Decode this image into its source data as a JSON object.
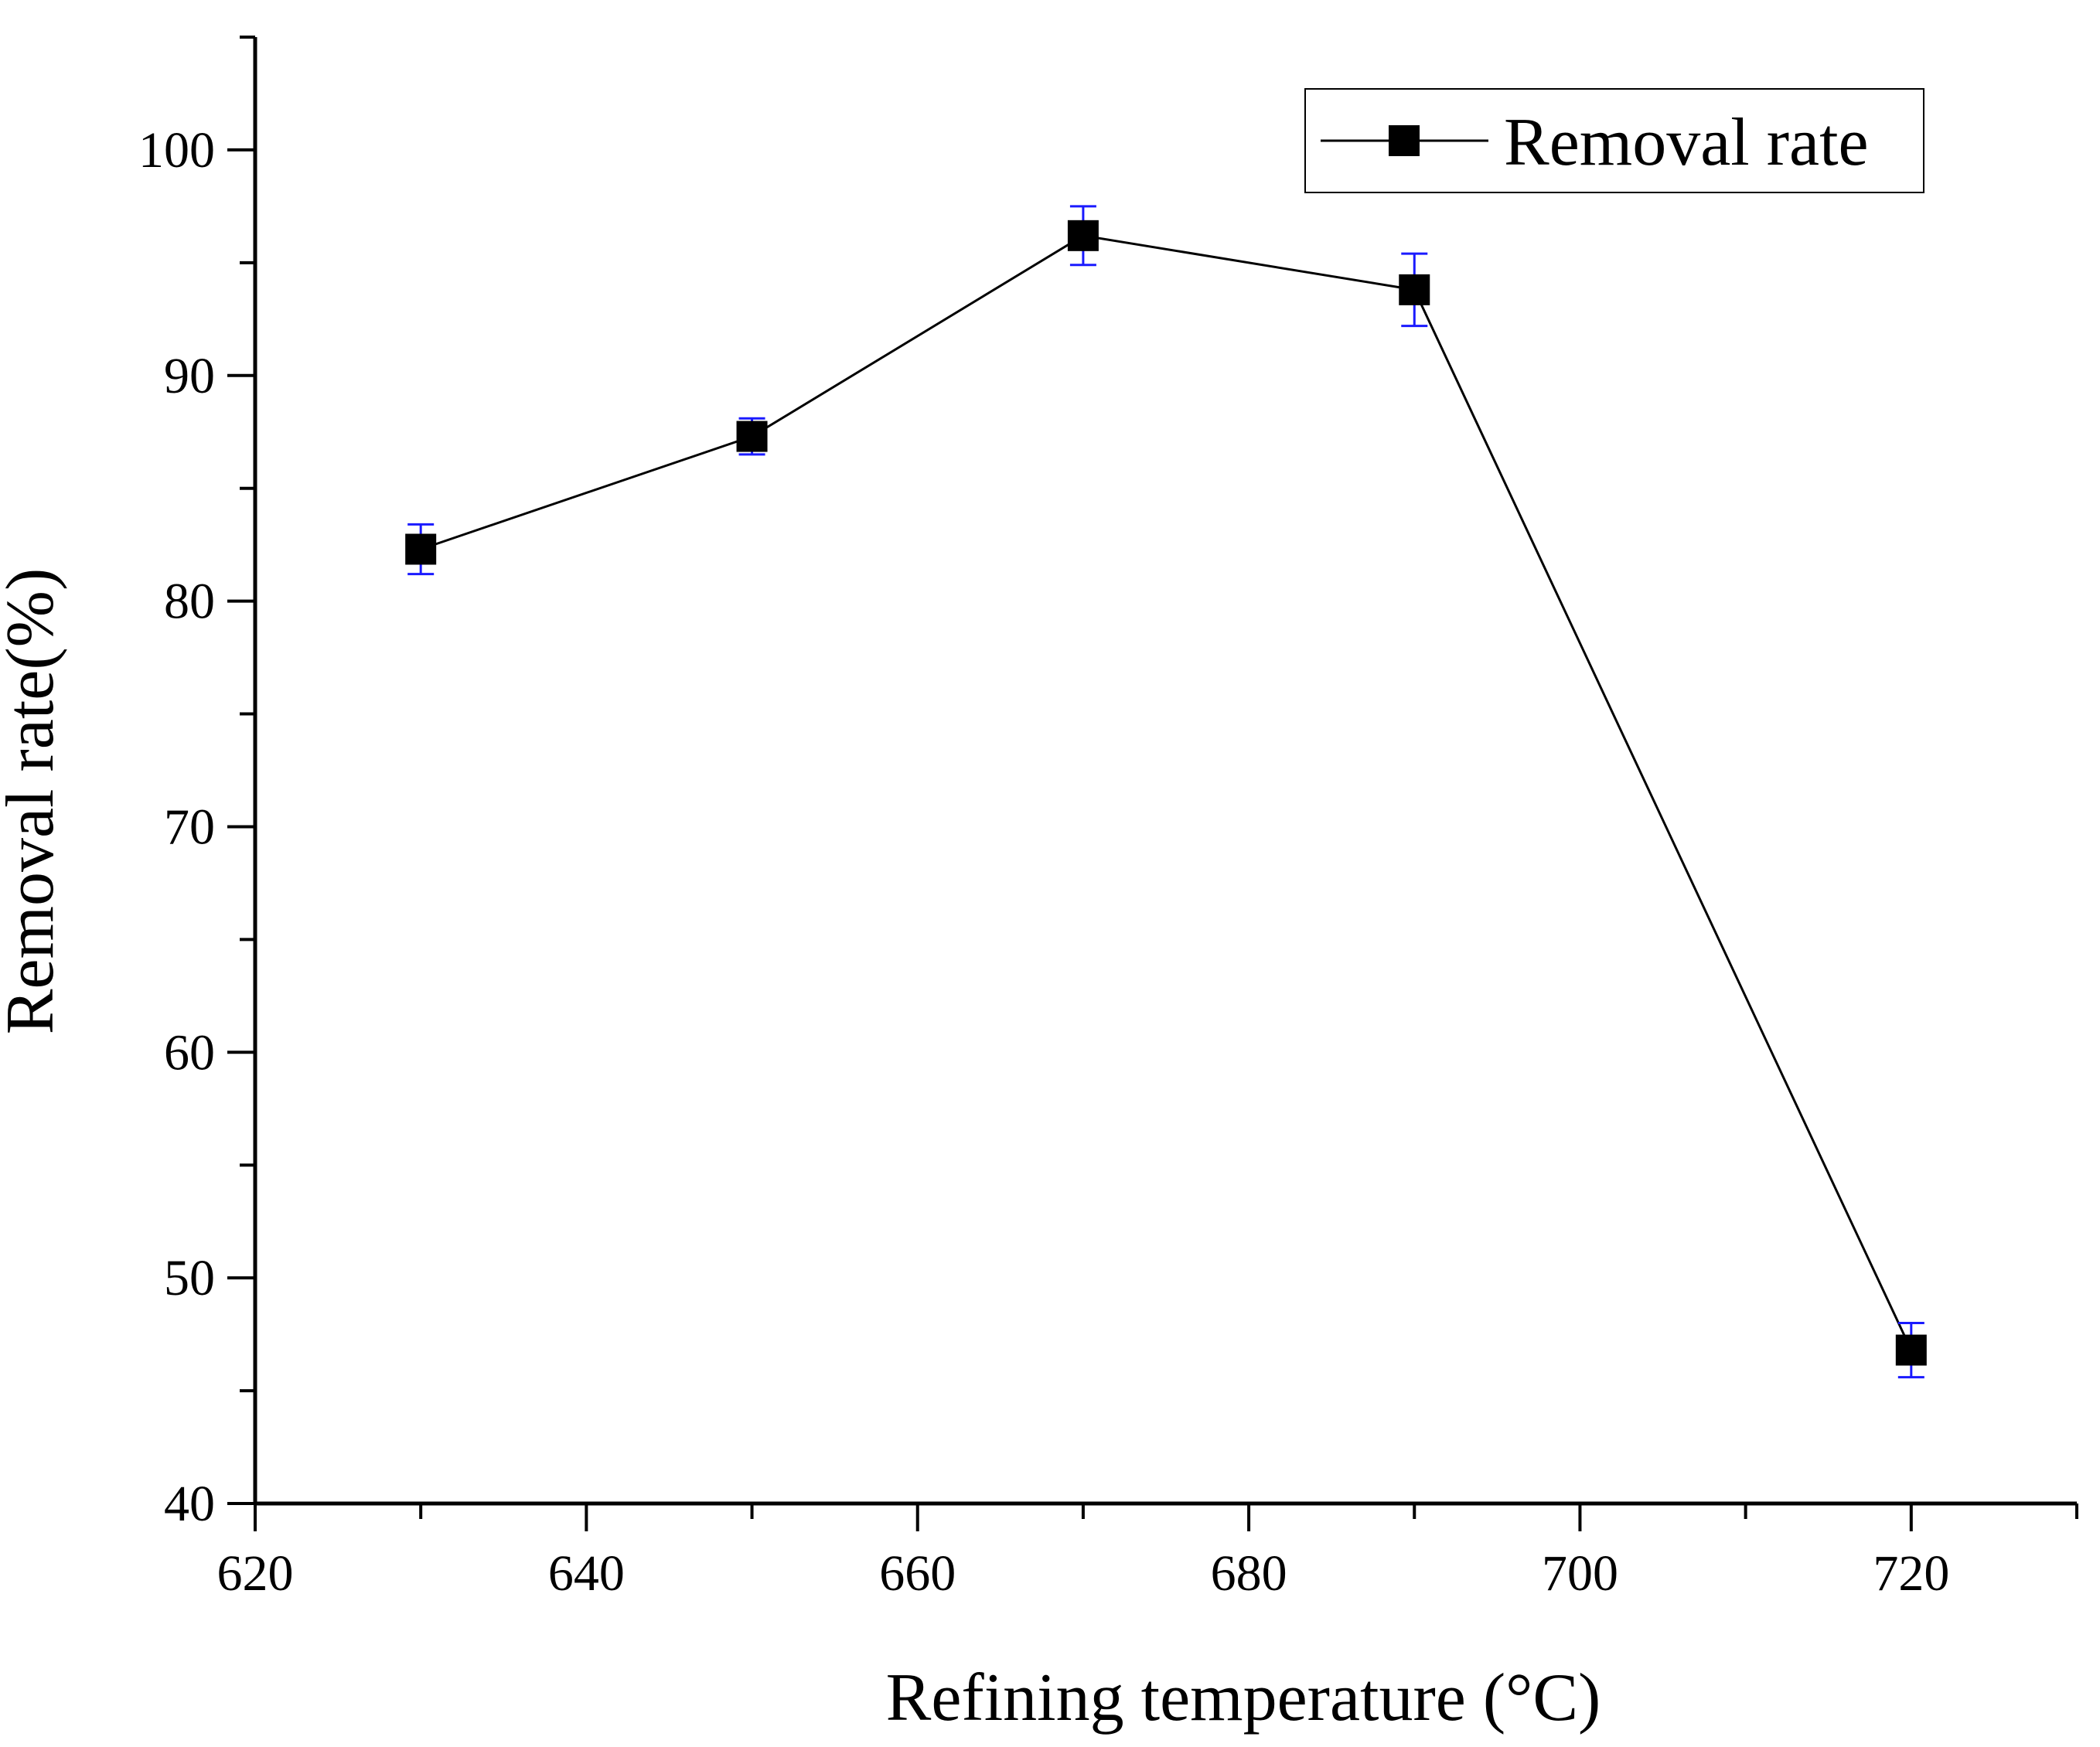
{
  "chart_data": {
    "type": "line",
    "title": "",
    "xlabel": "Refining temperature (°C)",
    "ylabel": "Removal rate(%)",
    "xlim": [
      620,
      730
    ],
    "ylim": [
      40,
      105
    ],
    "x_ticks": [
      620,
      640,
      660,
      680,
      700,
      720
    ],
    "y_ticks": [
      40,
      50,
      60,
      70,
      80,
      90,
      100
    ],
    "grid": false,
    "legend_position": "top-right",
    "series": [
      {
        "name": "Removal rate",
        "color": "#000000",
        "error_color": "#1a1aff",
        "x": [
          630,
          650,
          670,
          690,
          720
        ],
        "y": [
          82.3,
          87.3,
          96.2,
          93.8,
          46.8
        ],
        "error": [
          1.1,
          0.8,
          1.3,
          1.6,
          1.2
        ]
      }
    ]
  }
}
